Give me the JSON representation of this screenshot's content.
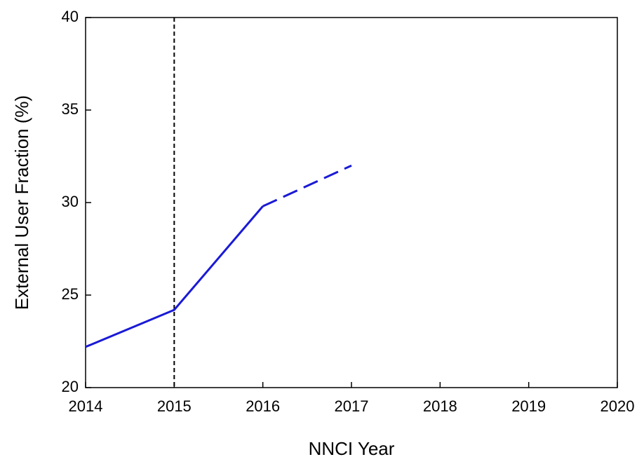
{
  "chart_data": {
    "type": "line",
    "x_label": "NNCI Year",
    "y_label": "External User Fraction (%)",
    "x": [
      2014,
      2015,
      2016,
      2017
    ],
    "series": [
      {
        "color": "#1a1ad6",
        "dashed": false,
        "values": [
          22.2,
          24.2,
          29.8,
          null
        ]
      },
      {
        "color": "#1a1ad6",
        "dashed": true,
        "values": [
          null,
          null,
          29.8,
          32
        ]
      }
    ],
    "reference_x": 2015,
    "xlim": [
      2014,
      2020
    ],
    "xticks": [
      2014,
      2015,
      2016,
      2017,
      2018,
      2019,
      2020
    ],
    "ylim": [
      20,
      40
    ],
    "yticks": [
      20,
      25,
      30,
      35,
      40
    ],
    "grid": false
  }
}
